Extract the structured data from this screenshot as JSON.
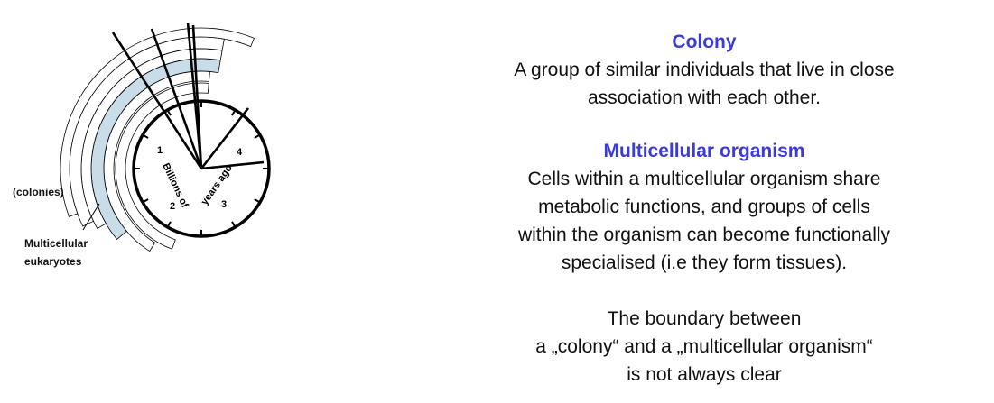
{
  "diagram": {
    "labels": {
      "colonies": "(colonies)",
      "multicellular_line1": "Multicellular",
      "multicellular_line2": "eukaryotes"
    },
    "clock": {
      "axis_label_part1": "Billions of",
      "axis_label_part2": "years ago",
      "hour_marks": [
        "1",
        "2",
        "3",
        "4"
      ]
    },
    "colors": {
      "highlight_band": "#c9dde8",
      "ink": "#000000"
    }
  },
  "content": {
    "colony_title": "Colony",
    "colony_text_line1": "A group of similar individuals that live in close",
    "colony_text_line2": "association with each other.",
    "multi_title": "Multicellular organism",
    "multi_text_line1": "Cells within a multicellular organism share",
    "multi_text_line2": "metabolic functions, and groups of cells",
    "multi_text_line3": "within the organism can become functionally",
    "multi_text_line4": "specialised (i.e they form tissues).",
    "boundary_line1": "The boundary between",
    "boundary_line2": "a „colony“ and a „multicellular organism“",
    "boundary_line3": "is not always clear"
  },
  "colors": {
    "heading": "#3b3bd9",
    "text": "#111111"
  }
}
